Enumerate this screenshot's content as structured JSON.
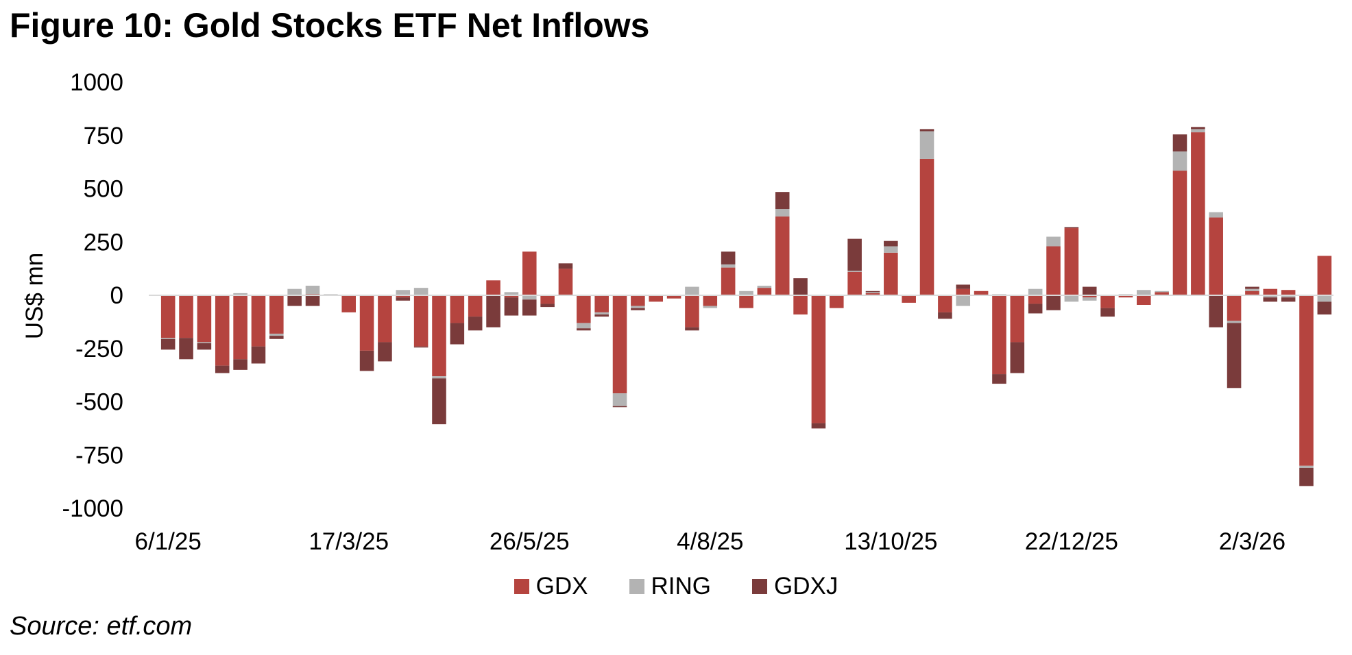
{
  "title": "Figure 10: Gold Stocks ETF Net Inflows",
  "source": "Source: etf.com",
  "colors": {
    "GDX": "#b5443f",
    "RING": "#b3b3b3",
    "GDXJ": "#7a3b3b"
  },
  "chart_data": {
    "type": "bar",
    "stacked": true,
    "title": "Figure 10: Gold Stocks ETF Net Inflows",
    "ylabel": "US$ mn",
    "xlabel": "",
    "ylim": [
      -1000,
      1000
    ],
    "yticks": [
      1000,
      750,
      500,
      250,
      0,
      -250,
      -500,
      -750,
      -1000
    ],
    "xtick_labels": [
      {
        "index": 0,
        "label": "6/1/25"
      },
      {
        "index": 10,
        "label": "17/3/25"
      },
      {
        "index": 20,
        "label": "26/5/25"
      },
      {
        "index": 30,
        "label": "4/8/25"
      },
      {
        "index": 40,
        "label": "13/10/25"
      },
      {
        "index": 50,
        "label": "22/12/25"
      },
      {
        "index": 60,
        "label": "2/3/26"
      }
    ],
    "legend_position": "bottom",
    "series": [
      {
        "name": "GDX",
        "values": [
          -200,
          -200,
          -220,
          -330,
          -300,
          -240,
          -180,
          0,
          5,
          0,
          -80,
          -260,
          -220,
          -10,
          -240,
          -380,
          -130,
          -100,
          70,
          -10,
          205,
          -40,
          125,
          -130,
          -80,
          -460,
          -50,
          -30,
          -15,
          -150,
          -50,
          130,
          -60,
          35,
          370,
          -90,
          -600,
          -60,
          110,
          10,
          200,
          -35,
          640,
          -80,
          30,
          20,
          -370,
          -220,
          -40,
          230,
          315,
          -10,
          -60,
          -10,
          -45,
          15,
          585,
          765,
          365,
          -120,
          20,
          30,
          25,
          -800,
          185
        ]
      },
      {
        "name": "RING",
        "values": [
          -5,
          0,
          -5,
          0,
          10,
          0,
          -10,
          30,
          40,
          5,
          0,
          0,
          0,
          25,
          35,
          -10,
          0,
          0,
          0,
          15,
          -20,
          0,
          0,
          -25,
          -10,
          -60,
          -10,
          0,
          0,
          40,
          -10,
          15,
          20,
          10,
          35,
          0,
          0,
          0,
          5,
          5,
          30,
          0,
          130,
          0,
          -50,
          0,
          5,
          0,
          30,
          45,
          -30,
          -15,
          0,
          5,
          25,
          5,
          90,
          15,
          25,
          -10,
          10,
          -10,
          -10,
          -10,
          -30
        ]
      },
      {
        "name": "GDXJ",
        "values": [
          -50,
          -100,
          -30,
          -35,
          -50,
          -80,
          -15,
          -50,
          -50,
          0,
          0,
          -95,
          -90,
          -15,
          -5,
          -215,
          -100,
          -65,
          -150,
          -85,
          -75,
          -15,
          25,
          -10,
          -10,
          -5,
          -10,
          0,
          0,
          -15,
          0,
          60,
          0,
          0,
          80,
          80,
          -25,
          0,
          150,
          5,
          25,
          0,
          10,
          -30,
          20,
          0,
          -45,
          -145,
          -45,
          -70,
          5,
          40,
          -40,
          0,
          0,
          0,
          80,
          10,
          -150,
          -305,
          10,
          -20,
          -20,
          -85,
          -60
        ]
      }
    ]
  }
}
